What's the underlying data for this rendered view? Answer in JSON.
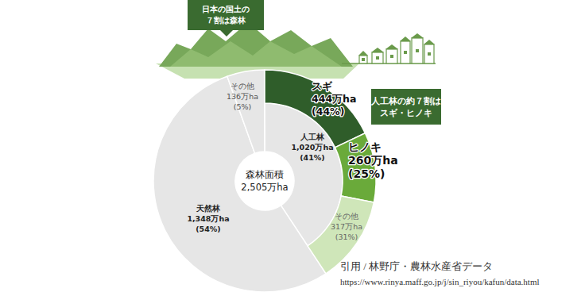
{
  "chart_data": {
    "type": "donut",
    "center_label": "森林面積",
    "total": 2505,
    "total_label": "2,505万ha",
    "data_labels": true,
    "series": [
      {
        "categories": [
          "人工林",
          "天然林",
          "その他"
        ],
        "values": [
          41,
          54,
          5
        ],
        "value_labels": [
          "(41%)",
          "(54%)",
          "(5%)"
        ],
        "amounts": [
          1020,
          1348,
          136
        ],
        "amount_labels": [
          "1,020万ha",
          "1,348万ha",
          "136万ha"
        ],
        "colors": [
          "#e6e6e6",
          "#e6e6e6",
          "#e6e6e6"
        ]
      },
      {
        "categories": [
          "スギ",
          "ヒノキ",
          "その他"
        ],
        "values": [
          44,
          25,
          31
        ],
        "value_labels": [
          "(44%)",
          "(25%)",
          "(31%)"
        ],
        "amounts": [
          444,
          260,
          317
        ],
        "amount_labels": [
          "444万ha",
          "260万ha",
          "317万ha"
        ],
        "colors": [
          "#2f5d2a",
          "#6aaa3a",
          "#cfe6b9"
        ]
      }
    ],
    "annotations": [
      {
        "lines": [
          "日本の国土の",
          "７割は森林"
        ]
      },
      {
        "lines": [
          "人工林の約７割は",
          "スギ・ヒノキ"
        ]
      }
    ],
    "source": "引用 / 林野庁・農林水産省データ",
    "url": "https://www.rinya.maff.go.jp/j/sin_riyou/kafun/data.html"
  }
}
